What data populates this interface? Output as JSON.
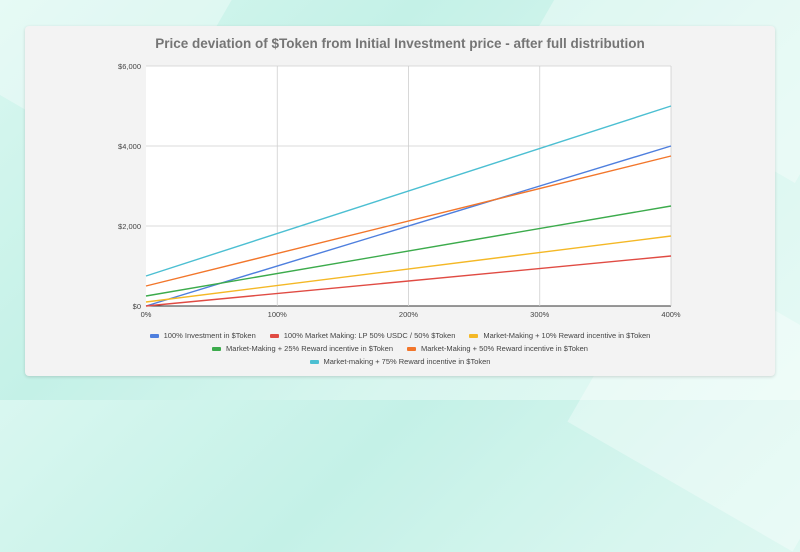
{
  "page": {
    "title": "Price deviation of $Token from Initial Investment price - after full distribution"
  },
  "chart_data": {
    "type": "line",
    "title": "Price deviation of $Token from Initial Investment price - after full distribution",
    "xlabel": "",
    "ylabel": "",
    "x": [
      0,
      400
    ],
    "xlim": [
      0,
      400
    ],
    "ylim": [
      0,
      6000
    ],
    "x_ticks": [
      0,
      100,
      200,
      300,
      400
    ],
    "x_tick_labels": [
      "0%",
      "100%",
      "200%",
      "300%",
      "400%"
    ],
    "y_ticks": [
      0,
      2000,
      4000,
      6000
    ],
    "y_tick_labels": [
      "$0",
      "$2,000",
      "$4,000",
      "$6,000"
    ],
    "grid": true,
    "legend_position": "bottom",
    "series": [
      {
        "name": "100% Investment in $Token",
        "color": "#4e7fde",
        "values": [
          0,
          4000
        ]
      },
      {
        "name": "100% Market Making: LP 50% USDC / 50% $Token",
        "color": "#e04b43",
        "values": [
          0,
          1250
        ]
      },
      {
        "name": "Market-Making + 10% Reward incentive in $Token",
        "color": "#f4b826",
        "values": [
          100,
          1750
        ]
      },
      {
        "name": "Market-Making + 25% Reward incentive in $Token",
        "color": "#3cab4c",
        "values": [
          250,
          2500
        ]
      },
      {
        "name": "Market-Making + 50% Reward incentive in $Token",
        "color": "#f2762b",
        "values": [
          500,
          3750
        ]
      },
      {
        "name": "Market-making + 75% Reward incentive in $Token",
        "color": "#4cbfd2",
        "values": [
          750,
          5000
        ]
      }
    ],
    "legend_rows": [
      [
        0,
        1,
        2
      ],
      [
        3,
        4
      ],
      [
        5
      ]
    ]
  }
}
